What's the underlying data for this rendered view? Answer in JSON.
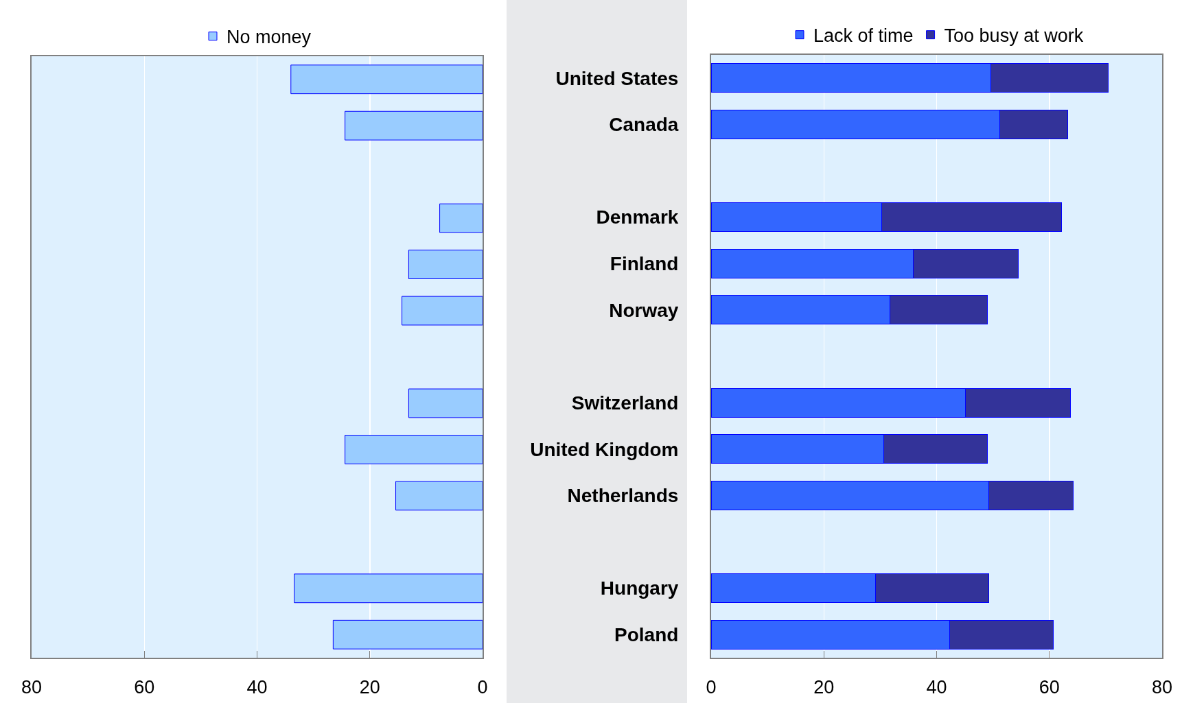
{
  "chart_data": [
    {
      "type": "bar",
      "orientation": "horizontal",
      "categories": [
        null,
        null,
        null,
        null,
        null,
        null,
        null,
        null,
        null,
        null,
        null,
        null,
        null
      ],
      "series": [
        {
          "name": "No money",
          "color": "#99ccff",
          "values": [
            34.0,
            24.4,
            null,
            7.6,
            13.1,
            14.3,
            null,
            13.1,
            24.4,
            15.4,
            null,
            33.4,
            26.5
          ]
        }
      ],
      "xlim": [
        80,
        0
      ],
      "xticks": [
        80,
        60,
        40,
        20,
        0
      ],
      "grid": "x",
      "legend": "top",
      "tick_labels": "x"
    },
    {
      "type": "bar",
      "orientation": "horizontal",
      "stacked": true,
      "categories": [
        "United States",
        "Canada",
        null,
        "Denmark",
        "Finland",
        "Norway",
        null,
        "Switzerland",
        "United Kingdom",
        "Netherlands",
        null,
        "Hungary",
        "Poland"
      ],
      "series": [
        {
          "name": "Lack of time",
          "color": "#3366ff",
          "values": [
            49.6,
            51.2,
            null,
            30.2,
            35.9,
            31.7,
            null,
            45.1,
            30.6,
            49.3,
            null,
            29.2,
            42.3
          ]
        },
        {
          "name": "Too busy at work",
          "color": "#333399",
          "values": [
            20.8,
            12.0,
            null,
            31.9,
            18.6,
            17.3,
            null,
            18.7,
            18.4,
            14.9,
            null,
            20.0,
            18.4
          ]
        }
      ],
      "xlim": [
        0,
        80
      ],
      "xticks": [
        0,
        20,
        40,
        60,
        80
      ],
      "grid": "x",
      "legend": "top"
    }
  ]
}
